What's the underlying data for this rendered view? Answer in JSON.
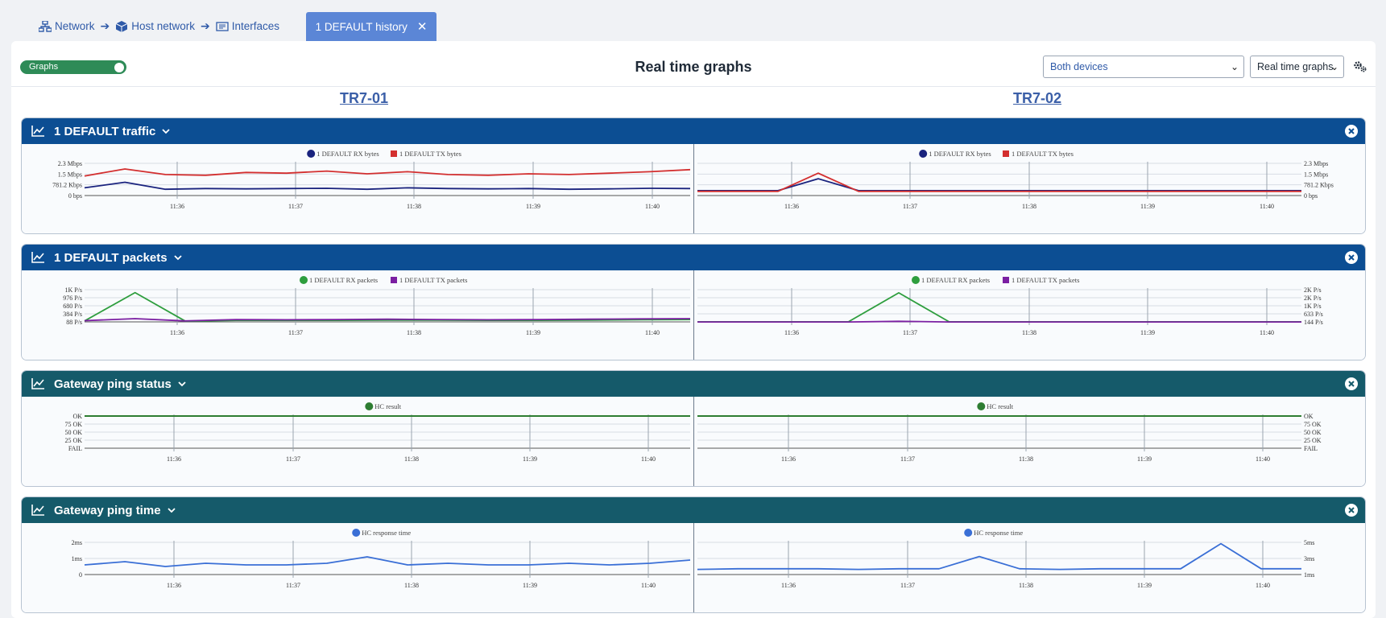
{
  "breadcrumb": {
    "items": [
      {
        "label": "Network",
        "icon": "network-icon"
      },
      {
        "label": "Host network",
        "icon": "cube-icon"
      },
      {
        "label": "Interfaces",
        "icon": "interfaces-icon"
      }
    ]
  },
  "tab": {
    "label": "1 DEFAULT history"
  },
  "toolbar": {
    "toggle_label": "Graphs",
    "title": "Real time graphs",
    "device_select": "Both devices",
    "mode_select": "Real time graphs"
  },
  "devices": [
    "TR7-01",
    "TR7-02"
  ],
  "x_ticks": [
    "11:36",
    "11:37",
    "11:38",
    "11:39",
    "11:40"
  ],
  "colors": {
    "header_blue": "#0c4e93",
    "header_teal": "#155a6a",
    "rx": "#1a237e",
    "tx": "#d32f2f",
    "pkt_rx": "#2e9e3e",
    "pkt_tx": "#7b1fa2",
    "hc": "#2e7d32",
    "hc_time": "#3a6fd6"
  },
  "panels": [
    {
      "title": "1 DEFAULT traffic",
      "legend": [
        "1 DEFAULT RX bytes",
        "1 DEFAULT TX bytes"
      ],
      "y_left": [
        "2.3 Mbps",
        "1.5 Mbps",
        "781.2 Kbps",
        "0 bps"
      ],
      "y_right": [
        "2.3 Mbps",
        "1.5 Mbps",
        "781.2 Kbps",
        "0 bps"
      ]
    },
    {
      "title": "1 DEFAULT packets",
      "legend": [
        "1 DEFAULT RX packets",
        "1 DEFAULT TX packets"
      ],
      "y_left": [
        "1K P/s",
        "976 P/s",
        "680 P/s",
        "384 P/s",
        "88 P/s"
      ],
      "y_right": [
        "2K P/s",
        "2K P/s",
        "1K P/s",
        "633 P/s",
        "144 P/s"
      ]
    },
    {
      "title": "Gateway ping status",
      "legend": [
        "HC result"
      ],
      "y_left": [
        "OK",
        "75 OK",
        "50 OK",
        "25 OK",
        "FAIL"
      ],
      "y_right": [
        "OK",
        "75 OK",
        "50 OK",
        "25 OK",
        "FAIL"
      ]
    },
    {
      "title": "Gateway ping time",
      "legend": [
        "HC response time"
      ],
      "y_left": [
        "2ms",
        "1ms",
        "0"
      ],
      "y_right": [
        "5ms",
        "3ms",
        "1ms"
      ]
    }
  ],
  "chart_data": [
    {
      "type": "line",
      "title": "1 DEFAULT traffic",
      "device": "TR7-01",
      "x": [
        "11:35:20",
        "11:35:40",
        "11:36:00",
        "11:36:20",
        "11:36:40",
        "11:37:00",
        "11:37:20",
        "11:37:40",
        "11:38:00",
        "11:38:20",
        "11:38:40",
        "11:39:00",
        "11:39:20",
        "11:39:40",
        "11:40:00",
        "11:40:20"
      ],
      "series": [
        {
          "name": "1 DEFAULT RX bytes",
          "values": [
            0.55,
            0.95,
            0.45,
            0.5,
            0.48,
            0.5,
            0.52,
            0.45,
            0.55,
            0.5,
            0.48,
            0.5,
            0.45,
            0.48,
            0.52,
            0.5
          ]
        },
        {
          "name": "1 DEFAULT TX bytes",
          "values": [
            1.4,
            1.9,
            1.5,
            1.45,
            1.65,
            1.6,
            1.75,
            1.55,
            1.7,
            1.5,
            1.45,
            1.55,
            1.5,
            1.6,
            1.7,
            1.85
          ]
        }
      ],
      "ylim": [
        0,
        2.3
      ]
    },
    {
      "type": "line",
      "title": "1 DEFAULT traffic",
      "device": "TR7-02",
      "x": [
        "11:35:20",
        "11:35:40",
        "11:36:00",
        "11:36:20",
        "11:36:40",
        "11:37:00",
        "11:37:20",
        "11:37:40",
        "11:38:00",
        "11:38:20",
        "11:38:40",
        "11:39:00",
        "11:39:20",
        "11:39:40",
        "11:40:00",
        "11:40:20"
      ],
      "series": [
        {
          "name": "1 DEFAULT RX bytes",
          "values": [
            0.35,
            0.35,
            0.35,
            1.2,
            0.35,
            0.35,
            0.35,
            0.35,
            0.35,
            0.35,
            0.35,
            0.35,
            0.35,
            0.35,
            0.35,
            0.35
          ]
        },
        {
          "name": "1 DEFAULT TX bytes",
          "values": [
            0.3,
            0.3,
            0.3,
            1.6,
            0.3,
            0.3,
            0.3,
            0.3,
            0.3,
            0.3,
            0.3,
            0.3,
            0.3,
            0.3,
            0.3,
            0.3
          ]
        }
      ],
      "ylim": [
        0,
        2.3
      ]
    },
    {
      "type": "line",
      "title": "1 DEFAULT packets",
      "device": "TR7-01",
      "x": [
        "11:35:20",
        "11:35:30",
        "11:35:40",
        "11:36:00",
        "11:36:30",
        "11:37:00",
        "11:37:30",
        "11:38:00",
        "11:38:30",
        "11:39:00",
        "11:39:30",
        "11:40:00",
        "11:40:20"
      ],
      "series": [
        {
          "name": "1 DEFAULT RX packets",
          "values": [
            120,
            1100,
            110,
            140,
            140,
            140,
            150,
            150,
            140,
            140,
            150,
            160,
            170
          ]
        },
        {
          "name": "1 DEFAULT TX packets",
          "values": [
            130,
            200,
            120,
            170,
            160,
            170,
            180,
            170,
            160,
            170,
            180,
            190,
            200
          ]
        }
      ],
      "ylim": [
        88,
        1200
      ]
    },
    {
      "type": "line",
      "title": "1 DEFAULT packets",
      "device": "TR7-02",
      "x": [
        "11:35:20",
        "11:35:40",
        "11:36:00",
        "11:36:30",
        "11:36:40",
        "11:37:00",
        "11:37:30",
        "11:38:00",
        "11:38:30",
        "11:39:00",
        "11:39:30",
        "11:40:00",
        "11:40:20"
      ],
      "series": [
        {
          "name": "1 DEFAULT RX packets",
          "values": [
            150,
            150,
            150,
            150,
            2000,
            150,
            150,
            150,
            150,
            150,
            150,
            150,
            150
          ]
        },
        {
          "name": "1 DEFAULT TX packets",
          "values": [
            140,
            140,
            140,
            140,
            180,
            140,
            140,
            140,
            140,
            140,
            140,
            140,
            140
          ]
        }
      ],
      "ylim": [
        144,
        2200
      ]
    },
    {
      "type": "line",
      "title": "Gateway ping status",
      "device": "TR7-01",
      "series": [
        {
          "name": "HC result",
          "values": [
            100,
            100,
            100,
            100,
            100,
            100
          ]
        }
      ],
      "ylim": [
        0,
        100
      ]
    },
    {
      "type": "line",
      "title": "Gateway ping status",
      "device": "TR7-02",
      "series": [
        {
          "name": "HC result",
          "values": [
            100,
            100,
            100,
            100,
            100,
            100
          ]
        }
      ],
      "ylim": [
        0,
        100
      ]
    },
    {
      "type": "line",
      "title": "Gateway ping time",
      "device": "TR7-01",
      "x": [
        "11:35:20",
        "11:35:40",
        "11:36:00",
        "11:36:20",
        "11:36:40",
        "11:37:00",
        "11:37:20",
        "11:37:40",
        "11:38:00",
        "11:38:20",
        "11:38:40",
        "11:39:00",
        "11:39:20",
        "11:39:40",
        "11:40:00",
        "11:40:20"
      ],
      "series": [
        {
          "name": "HC response time",
          "values": [
            0.6,
            0.8,
            0.5,
            0.7,
            0.6,
            0.6,
            0.7,
            1.1,
            0.6,
            0.7,
            0.6,
            0.6,
            0.7,
            0.6,
            0.7,
            0.9
          ]
        }
      ],
      "ylim": [
        0,
        2
      ]
    },
    {
      "type": "line",
      "title": "Gateway ping time",
      "device": "TR7-02",
      "x": [
        "11:35:20",
        "11:35:40",
        "11:36:00",
        "11:36:20",
        "11:36:40",
        "11:37:00",
        "11:37:20",
        "11:37:40",
        "11:38:00",
        "11:38:20",
        "11:38:40",
        "11:39:00",
        "11:39:20",
        "11:39:40",
        "11:40:00",
        "11:40:20"
      ],
      "series": [
        {
          "name": "HC response time",
          "values": [
            0.8,
            0.9,
            0.9,
            0.9,
            0.8,
            0.9,
            0.9,
            2.8,
            0.9,
            0.8,
            0.9,
            0.9,
            0.9,
            4.8,
            0.9,
            0.9
          ]
        }
      ],
      "ylim": [
        0,
        5
      ]
    }
  ]
}
